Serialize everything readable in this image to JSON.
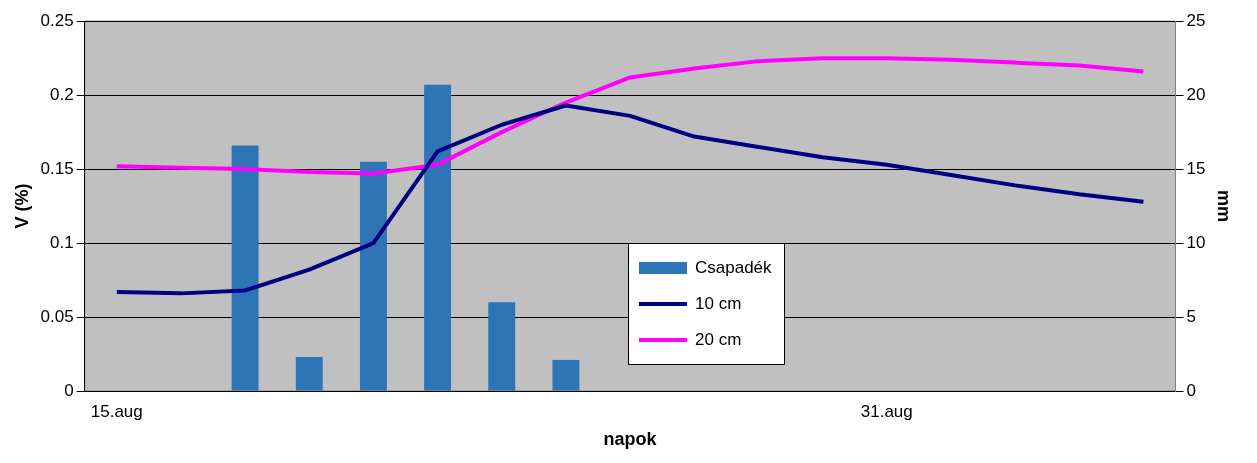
{
  "chart_data": {
    "type": "bar",
    "categories": [
      "15.aug",
      null,
      null,
      null,
      null,
      null,
      null,
      null,
      null,
      null,
      null,
      null,
      "31.aug",
      null,
      null,
      null,
      null
    ],
    "xlabel": "napok",
    "ylabel": "V (%)",
    "y2label": "mm",
    "series": [
      {
        "name": "Csapadék",
        "axis": "y2",
        "color": "#2e75b6",
        "values": [
          null,
          null,
          16.6,
          2.3,
          15.5,
          20.7,
          6.0,
          2.1,
          null,
          null,
          null,
          null,
          null,
          null,
          null,
          null,
          null
        ]
      },
      {
        "name": "10 cm",
        "type": "line",
        "color": "#000080",
        "values": [
          0.067,
          0.066,
          0.068,
          0.082,
          0.1,
          0.162,
          0.18,
          0.193,
          0.186,
          0.172,
          0.165,
          0.158,
          0.153,
          0.146,
          0.139,
          0.133,
          0.128
        ]
      },
      {
        "name": "20 cm",
        "type": "line",
        "color": "#ff00ff",
        "values": [
          0.152,
          0.151,
          0.15,
          0.148,
          0.147,
          0.153,
          0.175,
          0.195,
          0.212,
          0.218,
          0.223,
          0.225,
          0.225,
          0.224,
          0.222,
          0.22,
          0.216
        ]
      }
    ],
    "ylim": [
      0,
      0.25
    ],
    "yticks": [
      0,
      0.05,
      0.1,
      0.15,
      0.2,
      0.25
    ],
    "y2lim": [
      0,
      25
    ],
    "y2ticks": [
      0,
      5,
      10,
      15,
      20,
      25
    ],
    "grid": "y",
    "legend": "bottom",
    "marker": "none",
    "line_style": "solid"
  }
}
